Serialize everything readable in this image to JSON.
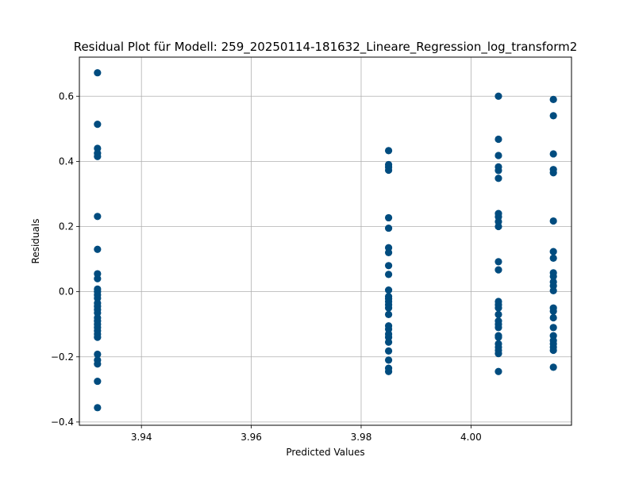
{
  "chart_data": {
    "type": "scatter",
    "title": "Residual Plot für Modell: 259_20250114-181632_Lineare_Regression_log_transform2",
    "xlabel": "Predicted Values",
    "ylabel": "Residuals",
    "xlim": [
      3.9287,
      4.0183
    ],
    "ylim": [
      -0.41,
      0.72
    ],
    "grid": true,
    "marker_color": "#004c7f",
    "x_ticks": [
      {
        "value": 3.94,
        "label": "3.94"
      },
      {
        "value": 3.96,
        "label": "3.96"
      },
      {
        "value": 3.98,
        "label": "3.98"
      },
      {
        "value": 4.0,
        "label": "4.00"
      }
    ],
    "y_ticks": [
      {
        "value": -0.4,
        "label": "−0.4"
      },
      {
        "value": -0.2,
        "label": "−0.2"
      },
      {
        "value": 0.0,
        "label": "0.0"
      },
      {
        "value": 0.2,
        "label": "0.2"
      },
      {
        "value": 0.4,
        "label": "0.4"
      },
      {
        "value": 0.6,
        "label": "0.6"
      }
    ],
    "groups": [
      {
        "x": 3.932,
        "y": [
          0.672,
          0.514,
          0.44,
          0.425,
          0.415,
          0.231,
          0.13,
          0.055,
          0.04,
          0.008,
          0.0,
          -0.01,
          -0.02,
          -0.035,
          -0.045,
          -0.055,
          -0.065,
          -0.08,
          -0.09,
          -0.1,
          -0.11,
          -0.12,
          -0.13,
          -0.14,
          -0.192,
          -0.21,
          -0.222,
          -0.275,
          -0.356
        ]
      },
      {
        "x": 3.985,
        "y": [
          0.433,
          0.39,
          0.382,
          0.373,
          0.227,
          0.195,
          0.135,
          0.12,
          0.08,
          0.053,
          0.005,
          -0.015,
          -0.022,
          -0.03,
          -0.04,
          -0.05,
          -0.07,
          -0.105,
          -0.115,
          -0.13,
          -0.14,
          -0.155,
          -0.182,
          -0.21,
          -0.235,
          -0.245
        ]
      },
      {
        "x": 4.005,
        "y": [
          0.6,
          0.468,
          0.418,
          0.383,
          0.372,
          0.348,
          0.24,
          0.23,
          0.215,
          0.2,
          0.092,
          0.067,
          -0.03,
          -0.04,
          -0.05,
          -0.07,
          -0.09,
          -0.1,
          -0.11,
          -0.135,
          -0.14,
          -0.16,
          -0.17,
          -0.18,
          -0.19,
          -0.245
        ]
      },
      {
        "x": 4.015,
        "y": [
          0.59,
          0.54,
          0.423,
          0.375,
          0.365,
          0.217,
          0.123,
          0.103,
          0.058,
          0.047,
          0.03,
          0.018,
          0.003,
          -0.05,
          -0.06,
          -0.08,
          -0.11,
          -0.135,
          -0.15,
          -0.16,
          -0.17,
          -0.18,
          -0.232
        ]
      }
    ]
  }
}
